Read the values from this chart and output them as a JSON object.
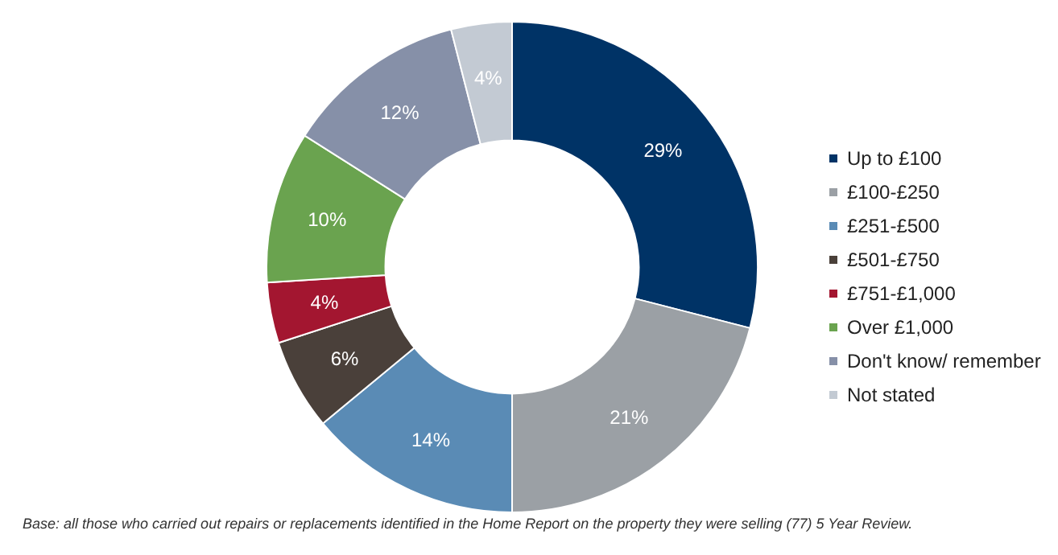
{
  "chart_data": {
    "type": "donut",
    "categories": [
      "Up to £100",
      "£100-£250",
      "£251-£500",
      "£501-£750",
      "£751-£1,000",
      "Over £1,000",
      "Don't know/ remember",
      "Not stated"
    ],
    "values": [
      29,
      21,
      14,
      6,
      4,
      10,
      12,
      4
    ],
    "colors": [
      "#003366",
      "#9ba0a5",
      "#5a8bb5",
      "#4a403a",
      "#a31630",
      "#6aa34f",
      "#8690a8",
      "#c3cad3"
    ],
    "value_labels": [
      "29%",
      "21%",
      "14%",
      "6%",
      "4%",
      "10%",
      "12%",
      "4%"
    ],
    "legend": "right",
    "annotations": [
      "Base: all those who carried out repairs or replacements identified in the Home Report on the property they were selling (77) 5 Year Review."
    ]
  }
}
